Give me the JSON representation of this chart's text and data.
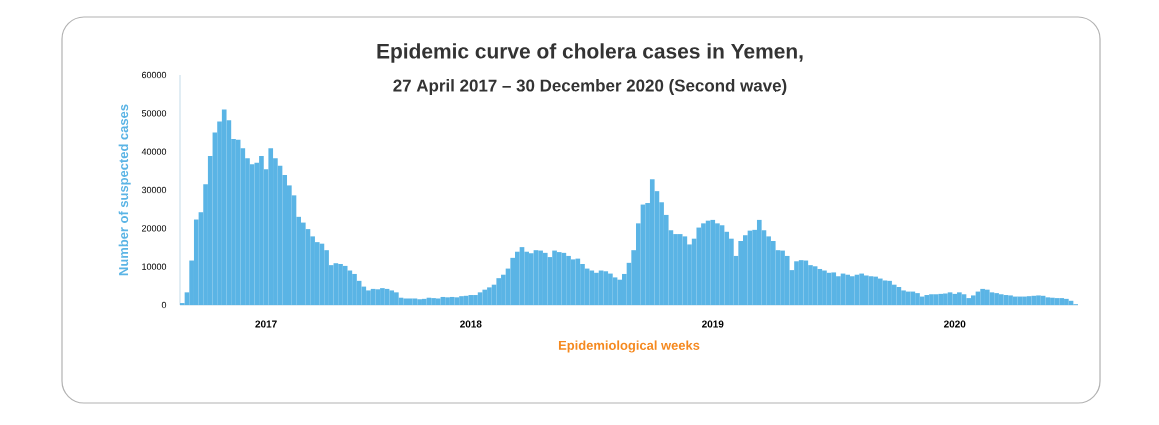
{
  "chart_data": {
    "type": "bar",
    "title": "Epidemic curve of cholera cases in Yemen,",
    "subtitle": "27 April 2017 – 30 December 2020 (Second wave)",
    "xlabel": "Epidemiological weeks",
    "ylabel": "Number of suspected cases",
    "color": "#5ab4e5",
    "categories": [
      null,
      null,
      null,
      null,
      null,
      null,
      null,
      null,
      null,
      null,
      null,
      null,
      null,
      null,
      null,
      null,
      null,
      null,
      "2017",
      null,
      null,
      null,
      null,
      null,
      null,
      null,
      null,
      null,
      null,
      null,
      null,
      null,
      null,
      null,
      null,
      null,
      null,
      null,
      null,
      null,
      null,
      null,
      null,
      null,
      null,
      null,
      null,
      null,
      null,
      null,
      null,
      null,
      null,
      null,
      null,
      null,
      null,
      null,
      null,
      null,
      null,
      null,
      "2018",
      null,
      null,
      null,
      null,
      null,
      null,
      null,
      null,
      null,
      null,
      null,
      null,
      null,
      null,
      null,
      null,
      null,
      null,
      null,
      null,
      null,
      null,
      null,
      null,
      null,
      null,
      null,
      null,
      null,
      null,
      null,
      null,
      null,
      null,
      null,
      null,
      null,
      null,
      null,
      null,
      null,
      null,
      null,
      null,
      null,
      null,
      null,
      null,
      null,
      null,
      null,
      "2019",
      null,
      null,
      null,
      null,
      null,
      null,
      null,
      null,
      null,
      null,
      null,
      null,
      null,
      null,
      null,
      null,
      null,
      null,
      null,
      null,
      null,
      null,
      null,
      null,
      null,
      null,
      null,
      null,
      null,
      null,
      null,
      null,
      null,
      null,
      null,
      null,
      null,
      null,
      null,
      null,
      null,
      null,
      null,
      null,
      null,
      null,
      null,
      null,
      null,
      null,
      null,
      "2020",
      null,
      null,
      null,
      null,
      null,
      null,
      null,
      null,
      null,
      null,
      null,
      null,
      null,
      null,
      null,
      null,
      null,
      null,
      null,
      null,
      null,
      null,
      null,
      null,
      null,
      null
    ],
    "values": [
      500,
      3300,
      11600,
      22300,
      24200,
      31500,
      38900,
      45000,
      47900,
      51000,
      48200,
      43300,
      43100,
      40900,
      38300,
      36700,
      37100,
      38900,
      35400,
      40900,
      38300,
      36300,
      33900,
      31200,
      28600,
      23000,
      21500,
      19800,
      17900,
      16400,
      16000,
      14300,
      10400,
      10900,
      10700,
      10200,
      9000,
      8100,
      6300,
      4800,
      3800,
      4200,
      4100,
      4400,
      4200,
      3800,
      3300,
      1900,
      1700,
      1700,
      1700,
      1500,
      1600,
      1900,
      1800,
      1700,
      2100,
      2000,
      2100,
      2000,
      2300,
      2400,
      2600,
      2600,
      3300,
      4000,
      4600,
      5300,
      7000,
      7900,
      9500,
      12300,
      13900,
      15100,
      13900,
      13500,
      14300,
      14200,
      13600,
      12500,
      14200,
      13800,
      13600,
      12800,
      11900,
      12100,
      10700,
      9500,
      9000,
      8400,
      9000,
      8800,
      8200,
      7200,
      6600,
      8100,
      11000,
      14300,
      21300,
      26200,
      26600,
      32800,
      29700,
      26800,
      23500,
      19500,
      18500,
      18500,
      17900,
      15800,
      17300,
      20200,
      21300,
      22000,
      22200,
      21300,
      20800,
      19100,
      17300,
      12800,
      16700,
      18200,
      19400,
      19600,
      22200,
      19500,
      17900,
      16700,
      14300,
      14200,
      12800,
      9100,
      11400,
      11700,
      11600,
      10400,
      10100,
      9400,
      9000,
      8400,
      8500,
      7500,
      8200,
      7900,
      7500,
      7900,
      8200,
      7700,
      7500,
      7400,
      6900,
      6400,
      6300,
      5300,
      4700,
      3800,
      3500,
      3500,
      3100,
      2200,
      2600,
      2800,
      2800,
      2900,
      3000,
      3300,
      2900,
      3300,
      2800,
      1800,
      2500,
      3500,
      4200,
      4000,
      3300,
      3100,
      2800,
      2600,
      2500,
      2200,
      2200,
      2200,
      2300,
      2400,
      2500,
      2400,
      2000,
      1900,
      1800,
      1800,
      1600,
      1100,
      200
    ],
    "ylim": [
      0,
      60000
    ],
    "yticks": [
      0,
      10000,
      20000,
      30000,
      40000,
      50000,
      60000
    ]
  }
}
